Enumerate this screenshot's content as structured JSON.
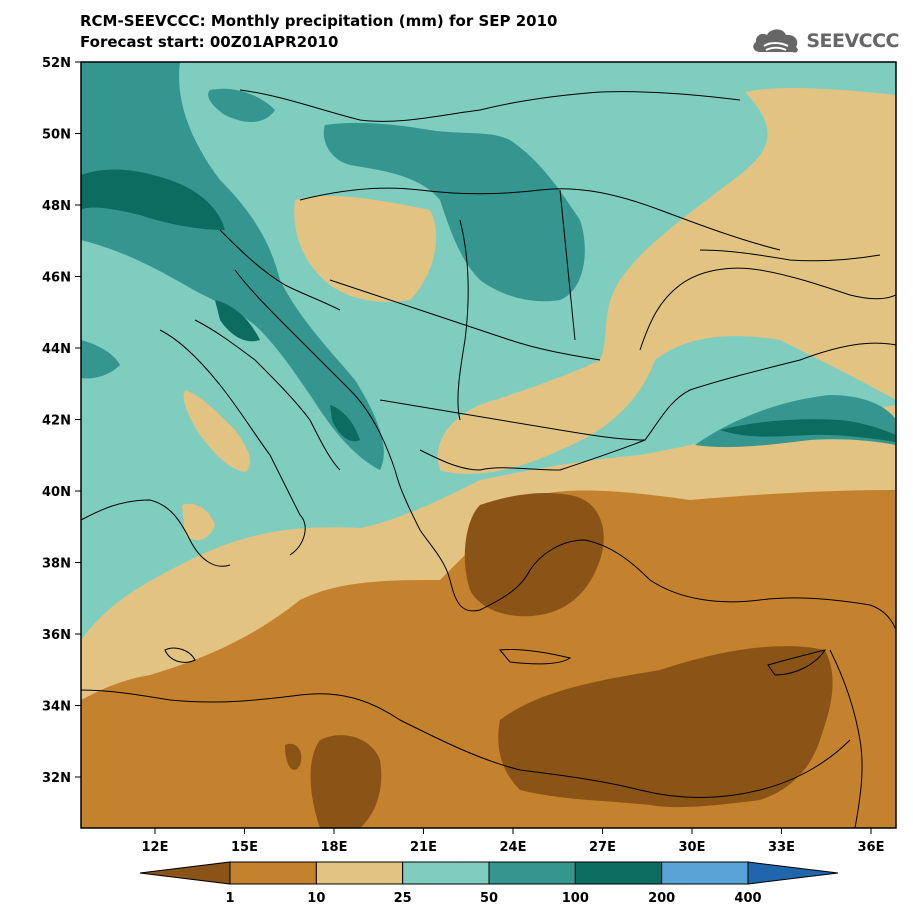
{
  "header": {
    "title_line1": "RCM-SEEVCCC: Monthly precipitation (mm) for SEP 2010",
    "title_line2": "Forecast start: 00Z01APR2010"
  },
  "logo": {
    "text": "SEEVCCC",
    "icon": "cloud-icon"
  },
  "map": {
    "lat_labels": [
      "52N",
      "50N",
      "48N",
      "46N",
      "44N",
      "42N",
      "40N",
      "38N",
      "36N",
      "34N",
      "32N"
    ],
    "lon_labels": [
      "12E",
      "15E",
      "18E",
      "21E",
      "24E",
      "27E",
      "30E",
      "33E",
      "36E"
    ],
    "lat_range": [
      30.5,
      52
    ],
    "lon_range": [
      9.5,
      37.5
    ]
  },
  "colorbar": {
    "colors": [
      "#8b5417",
      "#c4822f",
      "#e2c382",
      "#7fcdbf",
      "#359690",
      "#0c6c5f",
      "#5aa3d6",
      "#2166ac"
    ],
    "labels": [
      "1",
      "10",
      "25",
      "50",
      "100",
      "200",
      "400"
    ]
  }
}
